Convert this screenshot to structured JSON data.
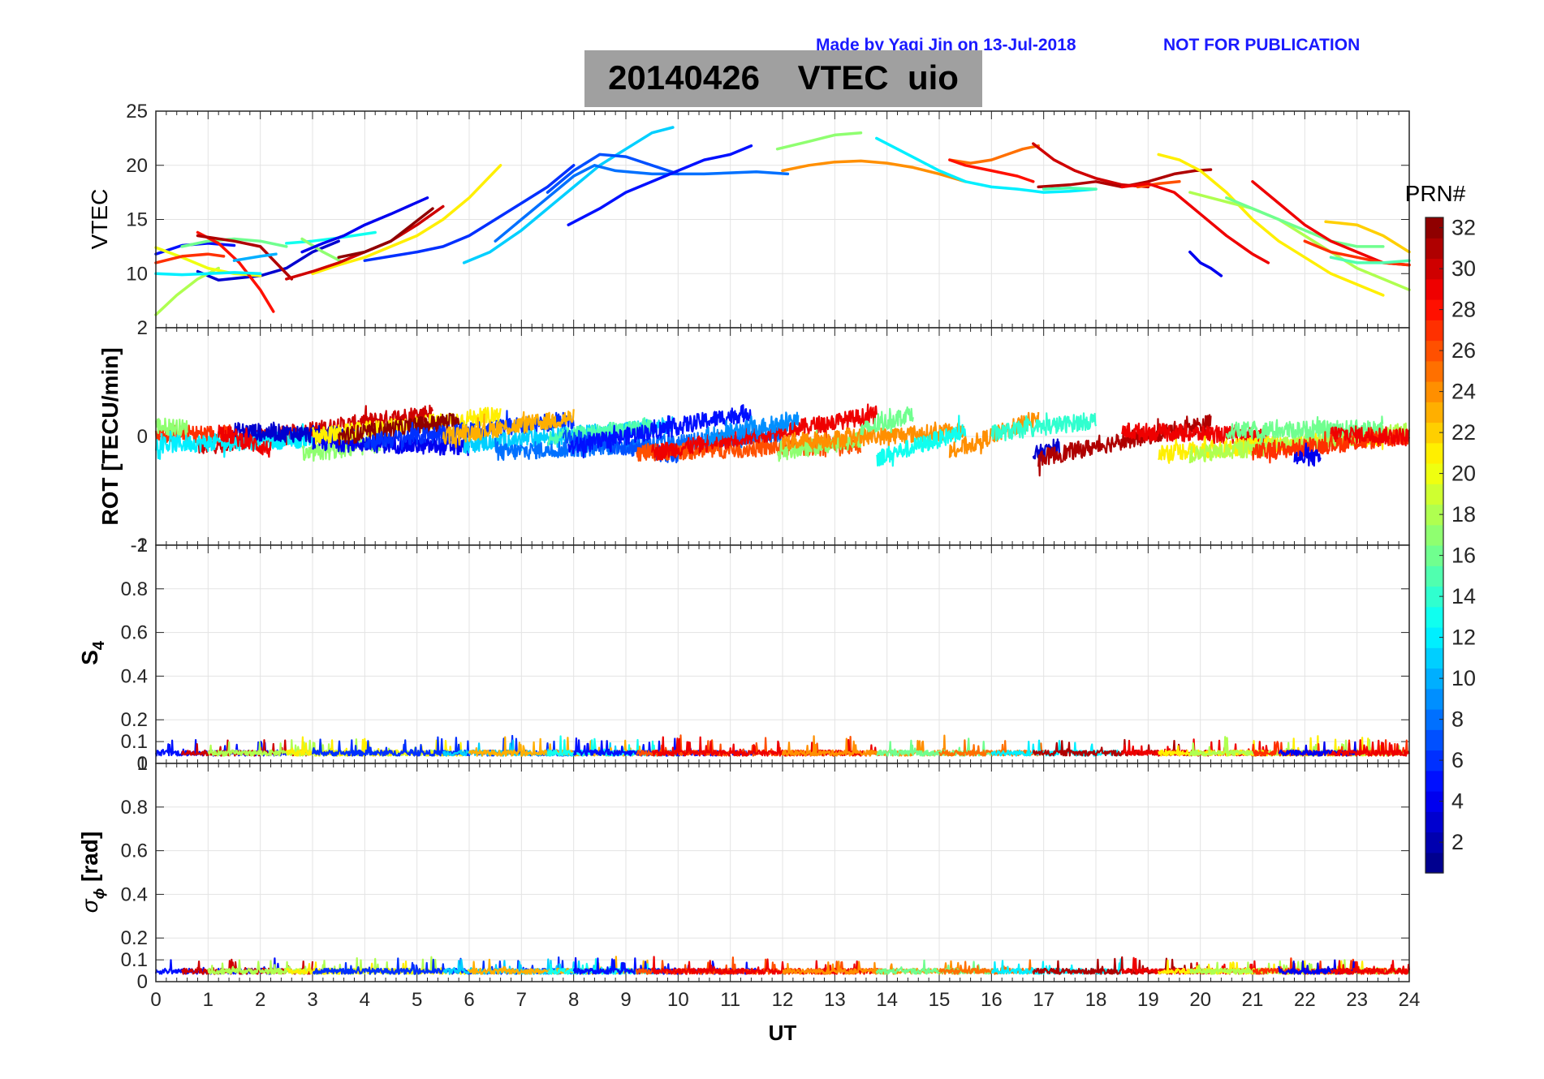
{
  "header": {
    "credit": "Made by Yaqi Jin on 13-Jul-2018",
    "notice": "NOT FOR PUBLICATION",
    "title": "20140426    VTEC  uio"
  },
  "colorbar": {
    "label": "PRN#",
    "ticks": [
      "2",
      "4",
      "6",
      "8",
      "10",
      "12",
      "14",
      "16",
      "18",
      "20",
      "22",
      "24",
      "26",
      "28",
      "30",
      "32"
    ],
    "min": 1,
    "max": 32,
    "colormap": "jet"
  },
  "chart_data": [
    {
      "type": "line",
      "panel": "VTEC",
      "ylabel": "VTEC",
      "xlabel": "",
      "xlim": [
        0,
        24
      ],
      "ylim": [
        5,
        25
      ],
      "yticks": [
        "10",
        "15",
        "20",
        "25"
      ],
      "grid": true,
      "series": [
        {
          "prn": 5,
          "x": [
            0,
            0.5,
            1,
            1.5
          ],
          "y": [
            11.8,
            12.6,
            12.8,
            12.6
          ]
        },
        {
          "prn": 3,
          "x": [
            0.8,
            1.2,
            2,
            2.5,
            3,
            3.5
          ],
          "y": [
            10.2,
            9.4,
            9.8,
            10.5,
            12.0,
            13.0
          ]
        },
        {
          "prn": 18,
          "x": [
            0,
            0.4,
            0.8,
            1.2
          ],
          "y": [
            6.2,
            8.0,
            9.5,
            10.5
          ]
        },
        {
          "prn": 20,
          "x": [
            0,
            0.5,
            1,
            1.5,
            2
          ],
          "y": [
            12.4,
            11.5,
            10.5,
            10.0,
            9.8
          ]
        },
        {
          "prn": 16,
          "x": [
            0.5,
            1,
            1.5,
            2,
            2.5
          ],
          "y": [
            12.5,
            13.0,
            13.2,
            13.0,
            12.5
          ]
        },
        {
          "prn": 27,
          "x": [
            0,
            0.5,
            1,
            1.3
          ],
          "y": [
            11.0,
            11.6,
            11.8,
            11.6
          ]
        },
        {
          "prn": 28,
          "x": [
            0.8,
            1.2,
            1.6,
            2,
            2.25
          ],
          "y": [
            13.8,
            12.8,
            11.0,
            8.5,
            6.5
          ]
        },
        {
          "prn": 31,
          "x": [
            0.8,
            1.5,
            2,
            2.3,
            2.6
          ],
          "y": [
            13.5,
            13.0,
            12.5,
            11.0,
            9.5
          ]
        },
        {
          "prn": 12,
          "x": [
            0,
            0.5,
            1,
            1.5,
            2
          ],
          "y": [
            10.0,
            9.9,
            10.0,
            10.1,
            10.0
          ]
        },
        {
          "prn": 10,
          "x": [
            1.5,
            2,
            2.3
          ],
          "y": [
            11.2,
            11.6,
            11.8
          ]
        },
        {
          "prn": 13,
          "x": [
            2.5,
            3,
            3.5,
            4.2
          ],
          "y": [
            12.8,
            13.0,
            13.3,
            13.8
          ]
        },
        {
          "prn": 17,
          "x": [
            2.8,
            3.2,
            3.6
          ],
          "y": [
            13.2,
            12.0,
            11.0
          ]
        },
        {
          "prn": 21,
          "x": [
            3,
            3.5,
            4,
            4.5,
            5,
            5.5,
            6,
            6.6
          ],
          "y": [
            10.0,
            10.8,
            11.5,
            12.5,
            13.5,
            15.0,
            17.0,
            20.0
          ]
        },
        {
          "prn": 4,
          "x": [
            2.8,
            3.2,
            3.6,
            4,
            4.5,
            5.2
          ],
          "y": [
            12.0,
            12.8,
            13.5,
            14.5,
            15.5,
            17.0
          ]
        },
        {
          "prn": 30,
          "x": [
            2.5,
            3,
            3.5,
            4,
            4.5,
            5,
            5.5
          ],
          "y": [
            9.5,
            10.2,
            11.0,
            12.0,
            13.0,
            14.5,
            16.2
          ]
        },
        {
          "prn": 32,
          "x": [
            3.5,
            4,
            4.5,
            5.3
          ],
          "y": [
            11.5,
            12.0,
            13.0,
            16.0
          ]
        },
        {
          "prn": 6,
          "x": [
            4,
            4.5,
            5,
            5.5,
            6,
            6.5,
            7,
            7.5,
            8
          ],
          "y": [
            11.2,
            11.6,
            12.0,
            12.5,
            13.5,
            15.0,
            16.5,
            18.0,
            20.0
          ]
        },
        {
          "prn": 11,
          "x": [
            5.9,
            6.4,
            7,
            7.5,
            8,
            8.5,
            9,
            9.5,
            9.9
          ],
          "y": [
            11.0,
            12.0,
            14.0,
            16.0,
            18.0,
            20.0,
            21.5,
            23.0,
            23.5
          ]
        },
        {
          "prn": 8,
          "x": [
            6.5,
            7,
            7.5,
            8,
            8.4,
            8.8,
            9.5,
            10.5,
            11.5,
            12.1
          ],
          "y": [
            13.0,
            15.0,
            17.0,
            19.0,
            20.0,
            19.5,
            19.2,
            19.2,
            19.4,
            19.2
          ]
        },
        {
          "prn": 7,
          "x": [
            7.5,
            8,
            8.5,
            9,
            9.5,
            10
          ],
          "y": [
            17.5,
            19.5,
            21.0,
            20.8,
            20.0,
            19.2
          ]
        },
        {
          "prn": 5,
          "x": [
            7.9,
            8.5,
            9,
            9.5,
            10,
            10.5,
            11,
            11.4
          ],
          "y": [
            14.5,
            16.0,
            17.5,
            18.5,
            19.5,
            20.5,
            21.0,
            21.8
          ]
        },
        {
          "prn": 17,
          "x": [
            11.9,
            12.5,
            13,
            13.5
          ],
          "y": [
            21.5,
            22.2,
            22.8,
            23.0
          ]
        },
        {
          "prn": 24,
          "x": [
            12,
            12.5,
            13,
            13.5,
            14,
            14.5,
            15,
            15.5
          ],
          "y": [
            19.5,
            20.0,
            20.3,
            20.4,
            20.2,
            19.8,
            19.2,
            18.5
          ]
        },
        {
          "prn": 12,
          "x": [
            13.8,
            14.2,
            14.6,
            15,
            15.5,
            16,
            16.5,
            17,
            17.5,
            18
          ],
          "y": [
            22.5,
            21.5,
            20.5,
            19.5,
            18.5,
            18.0,
            17.8,
            17.5,
            17.6,
            17.8
          ]
        },
        {
          "prn": 25,
          "x": [
            15.2,
            15.6,
            16,
            16.3,
            16.6,
            16.9
          ],
          "y": [
            20.5,
            20.2,
            20.5,
            21.0,
            21.5,
            21.8
          ]
        },
        {
          "prn": 28,
          "x": [
            15.2,
            15.5,
            16,
            16.5,
            16.8
          ],
          "y": [
            20.5,
            20.0,
            19.5,
            19.0,
            18.5
          ]
        },
        {
          "prn": 30,
          "x": [
            16.8,
            17.2,
            17.6,
            18,
            18.5,
            19
          ],
          "y": [
            22.0,
            20.5,
            19.5,
            18.8,
            18.2,
            18.0
          ]
        },
        {
          "prn": 31,
          "x": [
            16.9,
            17.5,
            18,
            18.5,
            19,
            19.5,
            19.9,
            20.2
          ],
          "y": [
            18.0,
            18.2,
            18.5,
            18.0,
            18.5,
            19.2,
            19.5,
            19.6
          ]
        },
        {
          "prn": 26,
          "x": [
            18.8,
            19.2,
            19.6
          ],
          "y": [
            18.0,
            18.3,
            18.5
          ]
        },
        {
          "prn": 15,
          "x": [
            17,
            17.5,
            18
          ],
          "y": [
            17.8,
            17.9,
            17.8
          ]
        },
        {
          "prn": 29,
          "x": [
            18.5,
            19,
            19.5,
            20,
            20.5,
            21,
            21.3
          ],
          "y": [
            18.0,
            18.3,
            17.5,
            15.5,
            13.5,
            11.8,
            11.0
          ]
        },
        {
          "prn": 21,
          "x": [
            19.2,
            19.6,
            20,
            20.5,
            21,
            21.5,
            22,
            22.5,
            23,
            23.5
          ],
          "y": [
            21.0,
            20.5,
            19.5,
            17.5,
            15.0,
            13.0,
            11.5,
            10.0,
            9.0,
            8.0
          ]
        },
        {
          "prn": 18,
          "x": [
            19.8,
            20.2,
            20.6,
            21,
            21.5,
            22,
            22.5,
            23,
            23.5,
            24
          ],
          "y": [
            17.5,
            17.0,
            16.5,
            16.0,
            15.0,
            13.5,
            12.0,
            10.5,
            9.5,
            8.5
          ]
        },
        {
          "prn": 16,
          "x": [
            20.5,
            21,
            21.5,
            22,
            22.5,
            23,
            23.5
          ],
          "y": [
            17.0,
            16.0,
            15.0,
            14.0,
            13.0,
            12.5,
            12.5
          ]
        },
        {
          "prn": 4,
          "x": [
            19.8,
            20,
            20.2,
            20.4
          ],
          "y": [
            12.0,
            11.0,
            10.5,
            9.8
          ]
        },
        {
          "prn": 29,
          "x": [
            21,
            21.5,
            22,
            22.5,
            23,
            23.5,
            24
          ],
          "y": [
            18.5,
            16.5,
            14.5,
            13.0,
            12.0,
            11.0,
            10.8
          ]
        },
        {
          "prn": 22,
          "x": [
            22.4,
            23,
            23.5,
            24
          ],
          "y": [
            14.8,
            14.5,
            13.5,
            12.0
          ]
        },
        {
          "prn": 27,
          "x": [
            22,
            22.5,
            23,
            23.5,
            24
          ],
          "y": [
            13.0,
            12.0,
            11.5,
            11.0,
            10.8
          ]
        },
        {
          "prn": 15,
          "x": [
            22.5,
            23,
            23.5,
            24
          ],
          "y": [
            11.5,
            11.0,
            11.0,
            11.2
          ]
        }
      ]
    },
    {
      "type": "line",
      "panel": "ROT",
      "ylabel": "ROT [TECU/min]",
      "xlabel": "",
      "xlim": [
        0,
        24
      ],
      "ylim": [
        -2,
        2
      ],
      "yticks": [
        "-2",
        "0",
        "2"
      ],
      "series": [
        {
          "prn": 30,
          "x0": 0.8,
          "x1": 5.3,
          "y0": -0.2,
          "y1": 0.45
        },
        {
          "prn": 27,
          "x0": 0,
          "x1": 1.5,
          "y0": 0.05,
          "y1": 0.05
        },
        {
          "prn": 17,
          "x0": 0,
          "x1": 0.6,
          "y0": 0.2,
          "y1": 0.15
        },
        {
          "prn": 12,
          "x0": 0,
          "x1": 3,
          "y0": -0.15,
          "y1": -0.05
        },
        {
          "prn": 3,
          "x0": 1.5,
          "x1": 4,
          "y0": 0.1,
          "y1": 0.0
        },
        {
          "prn": 29,
          "x0": 1.2,
          "x1": 2.2,
          "y0": 0.1,
          "y1": -0.25
        },
        {
          "prn": 17,
          "x0": 2.8,
          "x1": 4.5,
          "y0": -0.35,
          "y1": -0.1
        },
        {
          "prn": 4,
          "x0": 3,
          "x1": 6,
          "y0": -0.1,
          "y1": -0.2
        },
        {
          "prn": 21,
          "x0": 3,
          "x1": 6.6,
          "y0": 0.0,
          "y1": 0.4
        },
        {
          "prn": 32,
          "x0": 3.5,
          "x1": 5.8,
          "y0": 0.0,
          "y1": 0.3
        },
        {
          "prn": 6,
          "x0": 4,
          "x1": 8,
          "y0": -0.1,
          "y1": 0.3
        },
        {
          "prn": 11,
          "x0": 5.9,
          "x1": 9.9,
          "y0": -0.15,
          "y1": 0.2
        },
        {
          "prn": 23,
          "x0": 5.5,
          "x1": 8,
          "y0": 0.0,
          "y1": 0.35
        },
        {
          "prn": 8,
          "x0": 6.5,
          "x1": 12,
          "y0": -0.3,
          "y1": 0.0
        },
        {
          "prn": 15,
          "x0": 7.5,
          "x1": 9.5,
          "y0": -0.05,
          "y1": 0.2
        },
        {
          "prn": 7,
          "x0": 7.8,
          "x1": 10,
          "y0": 0.0,
          "y1": -0.35
        },
        {
          "prn": 5,
          "x0": 7.9,
          "x1": 11.4,
          "y0": -0.2,
          "y1": 0.45
        },
        {
          "prn": 26,
          "x0": 9.2,
          "x1": 13.5,
          "y0": -0.3,
          "y1": -0.15
        },
        {
          "prn": 29,
          "x0": 9.5,
          "x1": 13.8,
          "y0": -0.3,
          "y1": 0.4
        },
        {
          "prn": 9,
          "x0": 10.5,
          "x1": 12.3,
          "y0": 0.0,
          "y1": 0.3
        },
        {
          "prn": 17,
          "x0": 11.9,
          "x1": 13.5,
          "y0": -0.3,
          "y1": -0.05
        },
        {
          "prn": 24,
          "x0": 12,
          "x1": 15.5,
          "y0": -0.1,
          "y1": 0.1
        },
        {
          "prn": 13,
          "x0": 13.8,
          "x1": 15.5,
          "y0": -0.4,
          "y1": 0.1
        },
        {
          "prn": 16,
          "x0": 13.5,
          "x1": 14.5,
          "y0": 0.1,
          "y1": 0.45
        },
        {
          "prn": 24,
          "x0": 15.2,
          "x1": 16.9,
          "y0": -0.3,
          "y1": 0.35
        },
        {
          "prn": 14,
          "x0": 16,
          "x1": 18,
          "y0": 0.05,
          "y1": 0.3
        },
        {
          "prn": 3,
          "x0": 16.8,
          "x1": 17.3,
          "y0": -0.35,
          "y1": -0.2
        },
        {
          "prn": 31,
          "x0": 16.9,
          "x1": 20.2,
          "y0": -0.4,
          "y1": 0.25
        },
        {
          "prn": 29,
          "x0": 18.5,
          "x1": 21.3,
          "y0": 0.1,
          "y1": 0.0
        },
        {
          "prn": 21,
          "x0": 19.2,
          "x1": 23.5,
          "y0": -0.3,
          "y1": 0.0
        },
        {
          "prn": 18,
          "x0": 19.8,
          "x1": 24,
          "y0": -0.35,
          "y1": 0.1
        },
        {
          "prn": 16,
          "x0": 20.5,
          "x1": 23.5,
          "y0": 0.1,
          "y1": 0.15
        },
        {
          "prn": 27,
          "x0": 21,
          "x1": 24,
          "y0": -0.3,
          "y1": 0.0
        },
        {
          "prn": 4,
          "x0": 21.8,
          "x1": 22.3,
          "y0": -0.4,
          "y1": -0.4
        },
        {
          "prn": 29,
          "x0": 22.5,
          "x1": 24,
          "y0": 0.05,
          "y1": 0.0
        }
      ]
    },
    {
      "type": "line",
      "panel": "S4",
      "ylabel": "S4",
      "xlabel": "",
      "xlim": [
        0,
        24
      ],
      "ylim": [
        0,
        1
      ],
      "yticks": [
        "0",
        "0.1",
        "0.2",
        "0.4",
        "0.6",
        "0.8",
        "1"
      ],
      "baseline_range": [
        0.02,
        0.12
      ]
    },
    {
      "type": "line",
      "panel": "sigma_phi",
      "ylabel": "σ ϕ [rad]",
      "xlabel": "UT",
      "xlim": [
        0,
        24
      ],
      "ylim": [
        0,
        1
      ],
      "xticks": [
        "0",
        "1",
        "2",
        "3",
        "4",
        "5",
        "6",
        "7",
        "8",
        "9",
        "10",
        "11",
        "12",
        "13",
        "14",
        "15",
        "16",
        "17",
        "18",
        "19",
        "20",
        "21",
        "22",
        "23",
        "24"
      ],
      "yticks": [
        "0",
        "0.1",
        "0.2",
        "0.4",
        "0.6",
        "0.8",
        "1"
      ],
      "baseline_range": [
        0.02,
        0.1
      ]
    }
  ]
}
